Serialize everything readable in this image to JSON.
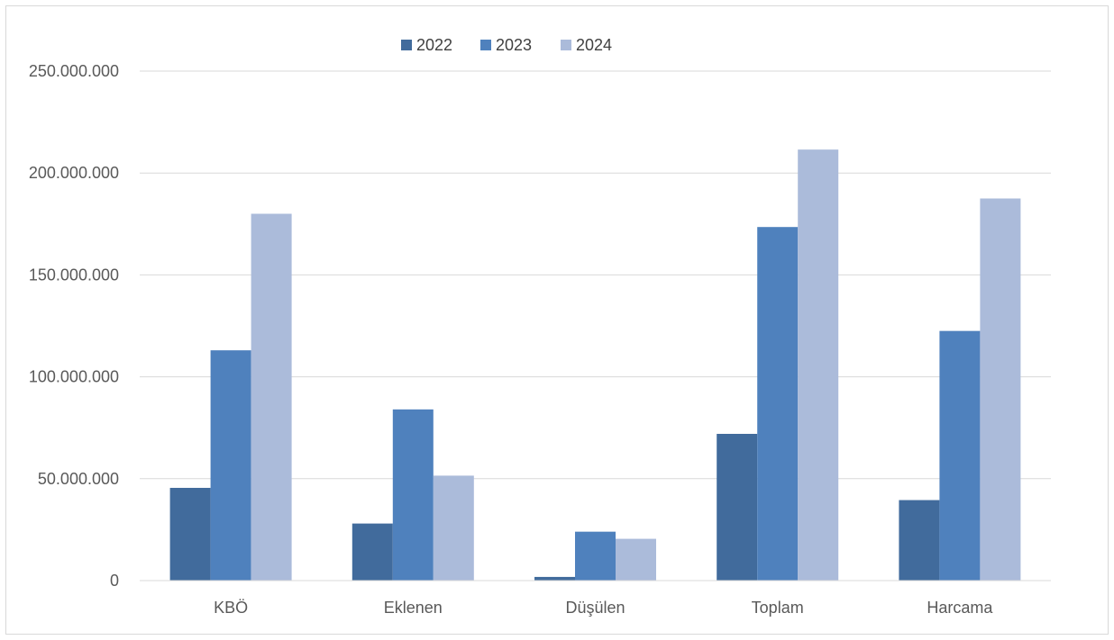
{
  "chart_data": {
    "type": "bar",
    "title": "",
    "xlabel": "",
    "ylabel": "",
    "categories": [
      "KBÖ",
      "Eklenen",
      "Düşülen",
      "Toplam",
      "Harcama"
    ],
    "series": [
      {
        "name": "2022",
        "color": "#416b9c",
        "values": [
          45500000,
          28000000,
          1800000,
          72000000,
          39500000
        ]
      },
      {
        "name": "2023",
        "color": "#4f81bd",
        "values": [
          113000000,
          84000000,
          24000000,
          173500000,
          122500000
        ]
      },
      {
        "name": "2024",
        "color": "#abbbda",
        "values": [
          180000000,
          51500000,
          20500000,
          211500000,
          187500000
        ]
      }
    ],
    "ylim": [
      0,
      250000000
    ],
    "yticks": [
      0,
      50000000,
      100000000,
      150000000,
      200000000,
      250000000
    ],
    "ytick_labels": [
      "0",
      "50.000.000",
      "100.000.000",
      "150.000.000",
      "200.000.000",
      "250.000.000"
    ],
    "grid": true,
    "legend_position": "top-center"
  }
}
